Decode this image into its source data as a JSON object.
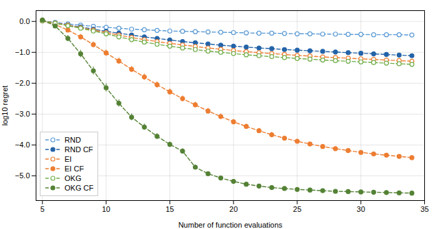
{
  "chart_data": {
    "type": "line",
    "xlabel": "Number of function evaluations",
    "ylabel": "log10 regret",
    "x": [
      5,
      6,
      7,
      8,
      9,
      10,
      11,
      12,
      13,
      14,
      15,
      16,
      17,
      18,
      19,
      20,
      21,
      22,
      23,
      24,
      25,
      26,
      27,
      28,
      29,
      30,
      31,
      32,
      33,
      34
    ],
    "xlim": [
      4.5,
      35
    ],
    "xticks": [
      5,
      10,
      15,
      20,
      25,
      30,
      35
    ],
    "ylim": [
      -5.8,
      0.35
    ],
    "yticks": [
      0,
      -1,
      -2,
      -3,
      -4,
      -5
    ],
    "grid": true,
    "legend": "lower left",
    "series": [
      {
        "name": "RND",
        "color": "#5b9bd5",
        "marker": "circle-open",
        "line_style": "dashed",
        "values": [
          0.02,
          -0.03,
          -0.08,
          -0.12,
          -0.16,
          -0.19,
          -0.22,
          -0.25,
          -0.27,
          -0.29,
          -0.31,
          -0.32,
          -0.33,
          -0.34,
          -0.35,
          -0.36,
          -0.37,
          -0.38,
          -0.38,
          -0.39,
          -0.4,
          -0.4,
          -0.41,
          -0.41,
          -0.42,
          -0.42,
          -0.43,
          -0.43,
          -0.43,
          -0.44
        ],
        "errors": [
          0.04,
          0.03,
          0.03,
          0.03,
          0.03,
          0.03,
          0.03,
          0.03,
          0.02,
          0.02,
          0.02,
          0.02,
          0.02,
          0.02,
          0.02,
          0.02,
          0.02,
          0.02,
          0.02,
          0.02,
          0.02,
          0.02,
          0.02,
          0.02,
          0.02,
          0.02,
          0.02,
          0.02,
          0.02,
          0.02
        ]
      },
      {
        "name": "RND CF",
        "color": "#2363a8",
        "marker": "circle",
        "line_style": "dashed",
        "values": [
          0.02,
          -0.05,
          -0.12,
          -0.18,
          -0.25,
          -0.32,
          -0.38,
          -0.44,
          -0.5,
          -0.55,
          -0.6,
          -0.65,
          -0.69,
          -0.73,
          -0.77,
          -0.8,
          -0.83,
          -0.86,
          -0.88,
          -0.91,
          -0.93,
          -0.95,
          -0.97,
          -0.99,
          -1.01,
          -1.03,
          -1.05,
          -1.07,
          -1.09,
          -1.11
        ],
        "errors": [
          0.04,
          0.03,
          0.03,
          0.03,
          0.03,
          0.03,
          0.02,
          0.02,
          0.02,
          0.02,
          0.02,
          0.02,
          0.02,
          0.02,
          0.02,
          0.02,
          0.02,
          0.02,
          0.02,
          0.02,
          0.02,
          0.02,
          0.02,
          0.02,
          0.02,
          0.02,
          0.02,
          0.02,
          0.02,
          0.02
        ]
      },
      {
        "name": "EI",
        "color": "#ed7d31",
        "marker": "circle-open",
        "line_style": "dashed",
        "values": [
          0.02,
          -0.05,
          -0.12,
          -0.2,
          -0.28,
          -0.36,
          -0.44,
          -0.52,
          -0.59,
          -0.65,
          -0.71,
          -0.76,
          -0.81,
          -0.86,
          -0.9,
          -0.94,
          -0.98,
          -1.01,
          -1.04,
          -1.07,
          -1.1,
          -1.12,
          -1.15,
          -1.17,
          -1.19,
          -1.21,
          -1.23,
          -1.25,
          -1.27,
          -1.29
        ],
        "errors": [
          0.04,
          0.04,
          0.04,
          0.04,
          0.04,
          0.04,
          0.04,
          0.03,
          0.03,
          0.03,
          0.03,
          0.03,
          0.03,
          0.03,
          0.02,
          0.02,
          0.02,
          0.02,
          0.02,
          0.02,
          0.02,
          0.02,
          0.02,
          0.02,
          0.02,
          0.02,
          0.02,
          0.02,
          0.02,
          0.02
        ]
      },
      {
        "name": "EI CF",
        "color": "#ed7d31",
        "marker": "circle",
        "line_style": "dashed",
        "values": [
          0.02,
          -0.1,
          -0.28,
          -0.5,
          -0.75,
          -1.02,
          -1.28,
          -1.55,
          -1.8,
          -2.05,
          -2.28,
          -2.5,
          -2.7,
          -2.9,
          -3.08,
          -3.25,
          -3.4,
          -3.54,
          -3.67,
          -3.78,
          -3.88,
          -3.97,
          -4.05,
          -4.12,
          -4.18,
          -4.24,
          -4.29,
          -4.33,
          -4.37,
          -4.41
        ],
        "errors": [
          0.04,
          0.05,
          0.07,
          0.08,
          0.09,
          0.1,
          0.1,
          0.1,
          0.1,
          0.1,
          0.1,
          0.09,
          0.09,
          0.09,
          0.09,
          0.08,
          0.08,
          0.08,
          0.08,
          0.07,
          0.07,
          0.07,
          0.07,
          0.06,
          0.06,
          0.06,
          0.06,
          0.06,
          0.05,
          0.05
        ]
      },
      {
        "name": "OKG",
        "color": "#70ad47",
        "marker": "circle-open",
        "line_style": "dashed",
        "values": [
          0.02,
          -0.06,
          -0.14,
          -0.22,
          -0.31,
          -0.4,
          -0.5,
          -0.59,
          -0.67,
          -0.74,
          -0.8,
          -0.86,
          -0.91,
          -0.96,
          -1.0,
          -1.04,
          -1.08,
          -1.11,
          -1.14,
          -1.17,
          -1.2,
          -1.22,
          -1.25,
          -1.27,
          -1.29,
          -1.31,
          -1.33,
          -1.35,
          -1.37,
          -1.39
        ],
        "errors": [
          0.04,
          0.04,
          0.04,
          0.04,
          0.04,
          0.04,
          0.04,
          0.03,
          0.03,
          0.03,
          0.03,
          0.03,
          0.03,
          0.03,
          0.02,
          0.02,
          0.02,
          0.02,
          0.02,
          0.02,
          0.02,
          0.02,
          0.02,
          0.02,
          0.02,
          0.02,
          0.02,
          0.02,
          0.02,
          0.02
        ]
      },
      {
        "name": "OKG CF",
        "color": "#548235",
        "marker": "circle",
        "line_style": "dashed",
        "values": [
          0.05,
          -0.15,
          -0.55,
          -1.05,
          -1.6,
          -2.15,
          -2.65,
          -3.1,
          -3.42,
          -3.72,
          -3.98,
          -4.2,
          -4.72,
          -4.93,
          -5.07,
          -5.18,
          -5.27,
          -5.33,
          -5.38,
          -5.41,
          -5.44,
          -5.46,
          -5.48,
          -5.5,
          -5.51,
          -5.52,
          -5.53,
          -5.54,
          -5.55,
          -5.56
        ],
        "errors": [
          0.05,
          0.07,
          0.1,
          0.12,
          0.13,
          0.13,
          0.12,
          0.11,
          0.1,
          0.09,
          0.08,
          0.08,
          0.07,
          0.06,
          0.06,
          0.05,
          0.05,
          0.04,
          0.04,
          0.04,
          0.03,
          0.03,
          0.03,
          0.03,
          0.03,
          0.03,
          0.03,
          0.03,
          0.03,
          0.03
        ]
      }
    ]
  }
}
